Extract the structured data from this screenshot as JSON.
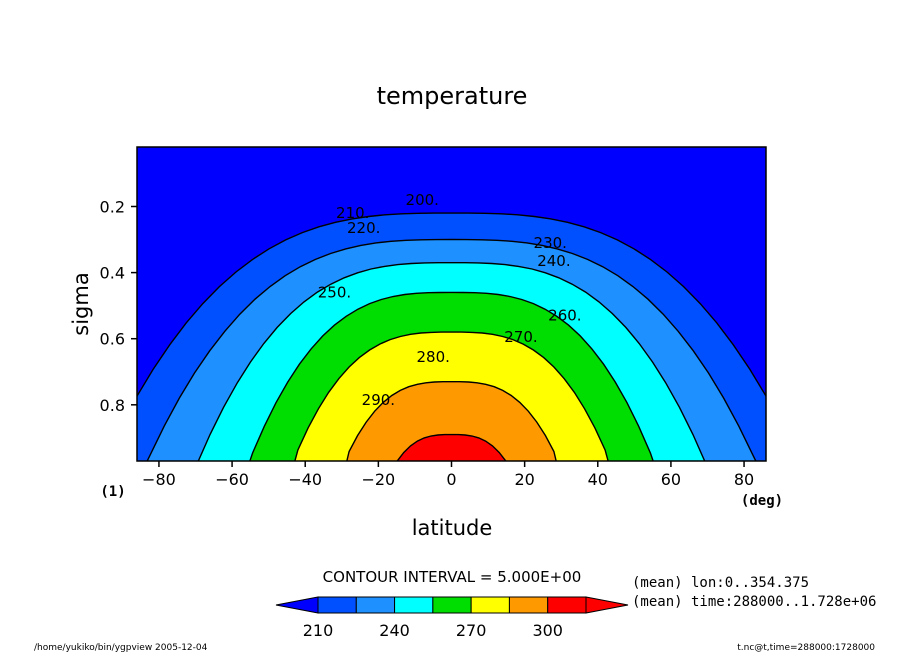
{
  "chart_data": {
    "type": "contour",
    "title": "temperature",
    "xlabel": "latitude",
    "x_units": "(deg)",
    "ylabel": "sigma",
    "y_corner_label": "(1)",
    "xlim": [
      -86,
      86
    ],
    "ylim": [
      0.02,
      0.97
    ],
    "y_inverted": true,
    "xticks": [
      -80,
      -60,
      -40,
      -20,
      0,
      20,
      40,
      60,
      80
    ],
    "yticks": [
      0.2,
      0.4,
      0.6,
      0.8
    ],
    "contour_interval_label": "CONTOUR INTERVAL = 5.000E+00",
    "contour_interval": 5,
    "contour_labels": [
      {
        "value": "200.",
        "x": -8,
        "sigma": 0.18
      },
      {
        "value": "210.",
        "x": -27,
        "sigma": 0.22
      },
      {
        "value": "220.",
        "x": -24,
        "sigma": 0.265
      },
      {
        "value": "230.",
        "x": 27,
        "sigma": 0.31
      },
      {
        "value": "240.",
        "x": 28,
        "sigma": 0.365
      },
      {
        "value": "250.",
        "x": -32,
        "sigma": 0.46
      },
      {
        "value": "260.",
        "x": 31,
        "sigma": 0.53
      },
      {
        "value": "270.",
        "x": 19,
        "sigma": 0.595
      },
      {
        "value": "280.",
        "x": -5,
        "sigma": 0.655
      },
      {
        "value": "290.",
        "x": -20,
        "sigma": 0.785
      }
    ],
    "colorbar": {
      "ticks": [
        "210",
        "240",
        "270",
        "300"
      ],
      "colors": [
        "#0050ff",
        "#1e90ff",
        "#00ffff",
        "#00dd00",
        "#ffff00",
        "#ff9900",
        "#ff0000"
      ],
      "under_color": "#0000ff",
      "over_color": "#ff0000"
    },
    "bands": [
      {
        "level": 290,
        "color": "#ff0000",
        "half_width": 16,
        "top_sigma": 0.89
      },
      {
        "level": 280,
        "color": "#ff9900",
        "half_width": 30,
        "top_sigma": 0.73
      },
      {
        "level": 270,
        "color": "#ffff00",
        "half_width": 44,
        "top_sigma": 0.58
      },
      {
        "level": 260,
        "color": "#00dd00",
        "half_width": 56,
        "top_sigma": 0.46
      },
      {
        "level": 250,
        "color": "#00ffff",
        "half_width": 70,
        "top_sigma": 0.37
      },
      {
        "level": 240,
        "color": "#1e90ff",
        "half_width": 84,
        "top_sigma": 0.3
      },
      {
        "level": 220,
        "color": "#0050ff",
        "half_width": 96,
        "top_sigma": 0.22
      }
    ],
    "notes": [
      "(mean) lon:0..354.375",
      "(mean) time:288000..1.728e+06"
    ]
  },
  "footer": {
    "left": "/home/yukiko/bin/ygpview  2005-12-04",
    "right": "t.nc@t,time=288000:1728000"
  }
}
